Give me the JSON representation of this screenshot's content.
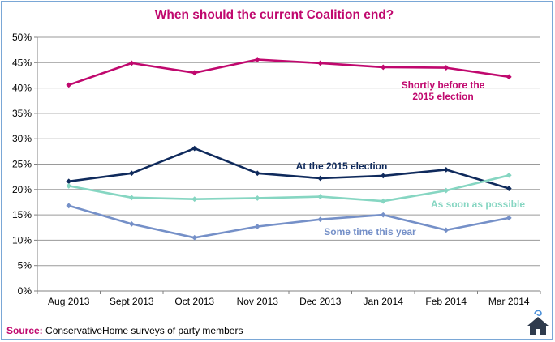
{
  "chart_data": {
    "type": "line",
    "title": "When should the current Coalition end?",
    "categories": [
      "Aug 2013",
      "Sept 2013",
      "Oct 2013",
      "Nov 2013",
      "Dec 2013",
      "Jan 2014",
      "Feb 2014",
      "Mar 2014"
    ],
    "ylim": [
      0,
      50
    ],
    "yticks": [
      0,
      5,
      10,
      15,
      20,
      25,
      30,
      35,
      40,
      45,
      50
    ],
    "ytick_labels": [
      "0%",
      "5%",
      "10%",
      "15%",
      "20%",
      "25%",
      "30%",
      "35%",
      "40%",
      "45%",
      "50%"
    ],
    "grid": true,
    "series": [
      {
        "name": "Shortly before the 2015 election",
        "label_lines": [
          "Shortly  before the",
          "2015 election"
        ],
        "color": "#c0086e",
        "values": [
          40.6,
          44.9,
          43.0,
          45.6,
          44.9,
          44.1,
          44.0,
          42.2
        ]
      },
      {
        "name": "At the 2015 election",
        "label_lines": [
          "At the 2015 election"
        ],
        "color": "#0f2a5c",
        "values": [
          21.6,
          23.2,
          28.1,
          23.2,
          22.2,
          22.7,
          23.9,
          20.2
        ]
      },
      {
        "name": "As soon as possible",
        "label_lines": [
          "As soon as possible"
        ],
        "color": "#86d6c2",
        "values": [
          20.7,
          18.4,
          18.1,
          18.3,
          18.6,
          17.7,
          19.8,
          22.8
        ]
      },
      {
        "name": "Some time this year",
        "label_lines": [
          "Some time this year"
        ],
        "color": "#7590c8",
        "values": [
          16.8,
          13.2,
          10.5,
          12.7,
          14.1,
          15.0,
          12.0,
          14.4
        ]
      }
    ]
  },
  "source": {
    "label": "Source:",
    "text": " ConservativeHome surveys of party members"
  },
  "colors": {
    "title": "#c0086e",
    "frame_border": "#7aa7d6",
    "grid": "#9a9a9a",
    "logo_house": "#2f3b4d",
    "logo_accent": "#4a8fd8"
  },
  "logo": {
    "icon": "conservativehome-house-icon"
  }
}
